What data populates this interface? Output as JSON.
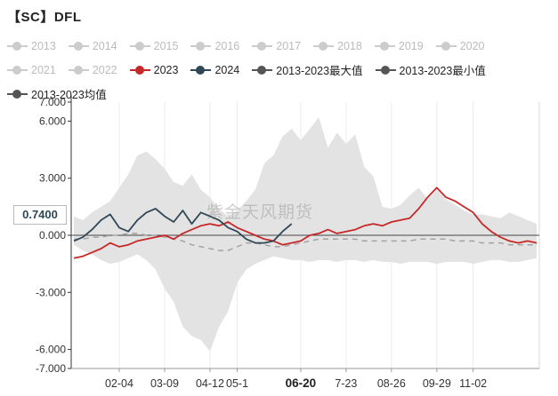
{
  "title": "【SC】DFL",
  "watermark": "紫金天风期货",
  "marker_value": "0.7400",
  "legend": [
    [
      {
        "label": "2013",
        "color": "#cccccc",
        "dim": true
      },
      {
        "label": "2014",
        "color": "#cccccc",
        "dim": true
      },
      {
        "label": "2015",
        "color": "#cccccc",
        "dim": true
      },
      {
        "label": "2016",
        "color": "#cccccc",
        "dim": true
      },
      {
        "label": "2017",
        "color": "#cccccc",
        "dim": true
      },
      {
        "label": "2018",
        "color": "#cccccc",
        "dim": true
      },
      {
        "label": "2019",
        "color": "#cccccc",
        "dim": true
      },
      {
        "label": "2020",
        "color": "#cccccc",
        "dim": true
      }
    ],
    [
      {
        "label": "2021",
        "color": "#cccccc",
        "dim": true
      },
      {
        "label": "2022",
        "color": "#cccccc",
        "dim": true
      },
      {
        "label": "2023",
        "color": "#c62828",
        "dim": false
      },
      {
        "label": "2024",
        "color": "#2f4756",
        "dim": false
      },
      {
        "label": "2013-2023最大值",
        "color": "#555555",
        "dim": false
      },
      {
        "label": "2013-2023最小值",
        "color": "#555555",
        "dim": false
      }
    ],
    [
      {
        "label": "2013-2023均值",
        "color": "#555555",
        "dim": false
      }
    ]
  ],
  "chart_data": {
    "type": "line",
    "ylim": [
      -7.0,
      7.0
    ],
    "y_ticks": [
      {
        "value": 7.0,
        "label": "7.000"
      },
      {
        "value": 6.0,
        "label": "6.000"
      },
      {
        "value": 3.0,
        "label": "3.000"
      },
      {
        "value": 0.0,
        "label": "0.000"
      },
      {
        "value": -3.0,
        "label": "-3.000"
      },
      {
        "value": -6.0,
        "label": "-6.000"
      },
      {
        "value": -7.0,
        "label": "-7.000"
      }
    ],
    "x_ticks": [
      {
        "week": 5,
        "label": "02-04",
        "highlight": false
      },
      {
        "week": 10,
        "label": "03-09",
        "highlight": false
      },
      {
        "week": 15,
        "label": "04-12",
        "highlight": false
      },
      {
        "week": 18,
        "label": "05-1",
        "highlight": false
      },
      {
        "week": 25,
        "label": "06-20",
        "highlight": true
      },
      {
        "week": 30,
        "label": "7-23",
        "highlight": false
      },
      {
        "week": 35,
        "label": "08-26",
        "highlight": false
      },
      {
        "week": 40,
        "label": "09-29",
        "highlight": false
      },
      {
        "week": 44,
        "label": "11-02",
        "highlight": false
      }
    ],
    "x_weeks": [
      0,
      1,
      2,
      3,
      4,
      5,
      6,
      7,
      8,
      9,
      10,
      11,
      12,
      13,
      14,
      15,
      16,
      17,
      18,
      19,
      20,
      21,
      22,
      23,
      24,
      25,
      26,
      27,
      28,
      29,
      30,
      31,
      32,
      33,
      34,
      35,
      36,
      37,
      38,
      39,
      40,
      41,
      42,
      43,
      44,
      45,
      46,
      47,
      48,
      49,
      50,
      51
    ],
    "band_upper": [
      1.0,
      0.8,
      1.2,
      1.5,
      1.8,
      2.5,
      3.2,
      4.2,
      4.4,
      4.0,
      3.5,
      2.8,
      2.6,
      3.2,
      2.4,
      2.0,
      1.4,
      1.0,
      1.3,
      1.8,
      2.4,
      3.8,
      4.2,
      5.2,
      5.6,
      5.0,
      5.6,
      6.2,
      4.6,
      5.4,
      4.8,
      5.3,
      3.6,
      3.1,
      1.5,
      1.4,
      1.6,
      2.1,
      2.5,
      1.9,
      2.4,
      1.9,
      1.6,
      1.3,
      1.1,
      1.1,
      1.0,
      0.9,
      1.2,
      1.0,
      0.8,
      0.6
    ],
    "band_lower": [
      -0.5,
      -0.8,
      -1.0,
      -1.3,
      -1.5,
      -1.4,
      -1.2,
      -1.0,
      -1.3,
      -1.8,
      -2.8,
      -3.5,
      -4.8,
      -5.3,
      -5.5,
      -6.1,
      -4.8,
      -4.0,
      -2.5,
      -1.8,
      -1.5,
      -1.3,
      -1.1,
      -1.2,
      -1.3,
      -1.3,
      -1.4,
      -1.3,
      -1.3,
      -1.4,
      -1.3,
      -1.3,
      -1.4,
      -1.3,
      -1.4,
      -1.4,
      -1.5,
      -1.4,
      -1.4,
      -1.4,
      -1.5,
      -1.4,
      -1.4,
      -1.4,
      -1.5,
      -1.4,
      -1.3,
      -1.3,
      -1.4,
      -1.4,
      -1.3,
      -1.2
    ],
    "series": [
      {
        "name": "2023",
        "color": "#c62828",
        "width": 1.8,
        "dash": "",
        "values": [
          -1.2,
          -1.1,
          -0.9,
          -0.7,
          -0.4,
          -0.6,
          -0.5,
          -0.3,
          -0.2,
          -0.1,
          0.0,
          -0.2,
          0.1,
          0.3,
          0.5,
          0.6,
          0.5,
          0.7,
          0.4,
          0.2,
          0.0,
          -0.2,
          -0.3,
          -0.5,
          -0.4,
          -0.3,
          0.0,
          0.1,
          0.3,
          0.1,
          0.2,
          0.3,
          0.5,
          0.6,
          0.5,
          0.7,
          0.8,
          0.9,
          1.4,
          2.0,
          2.5,
          2.0,
          1.8,
          1.5,
          1.2,
          0.6,
          0.2,
          -0.1,
          -0.3,
          -0.4,
          -0.3,
          -0.4
        ]
      },
      {
        "name": "2024",
        "color": "#2f4756",
        "width": 1.8,
        "dash": "",
        "values": [
          -0.3,
          -0.1,
          0.3,
          0.8,
          1.1,
          0.4,
          0.2,
          0.8,
          1.2,
          1.4,
          1.0,
          0.7,
          1.3,
          0.6,
          1.2,
          1.0,
          0.8,
          0.4,
          0.2,
          -0.2,
          -0.4,
          -0.4,
          -0.3,
          0.2,
          0.6
        ]
      },
      {
        "name": "2013-2023均值",
        "color": "#a3a3a3",
        "width": 1.5,
        "dash": "6,5",
        "values": [
          -0.2,
          -0.2,
          -0.1,
          -0.1,
          0.0,
          0.0,
          0.1,
          0.1,
          0.0,
          0.0,
          -0.1,
          -0.2,
          -0.3,
          -0.5,
          -0.6,
          -0.7,
          -0.8,
          -0.8,
          -0.6,
          -0.4,
          -0.4,
          -0.5,
          -0.6,
          -0.6,
          -0.5,
          -0.4,
          -0.3,
          -0.2,
          -0.2,
          -0.2,
          -0.2,
          -0.2,
          -0.3,
          -0.3,
          -0.3,
          -0.3,
          -0.3,
          -0.3,
          -0.2,
          -0.2,
          -0.2,
          -0.2,
          -0.3,
          -0.3,
          -0.3,
          -0.4,
          -0.4,
          -0.4,
          -0.5,
          -0.5,
          -0.5,
          -0.5
        ]
      }
    ]
  }
}
